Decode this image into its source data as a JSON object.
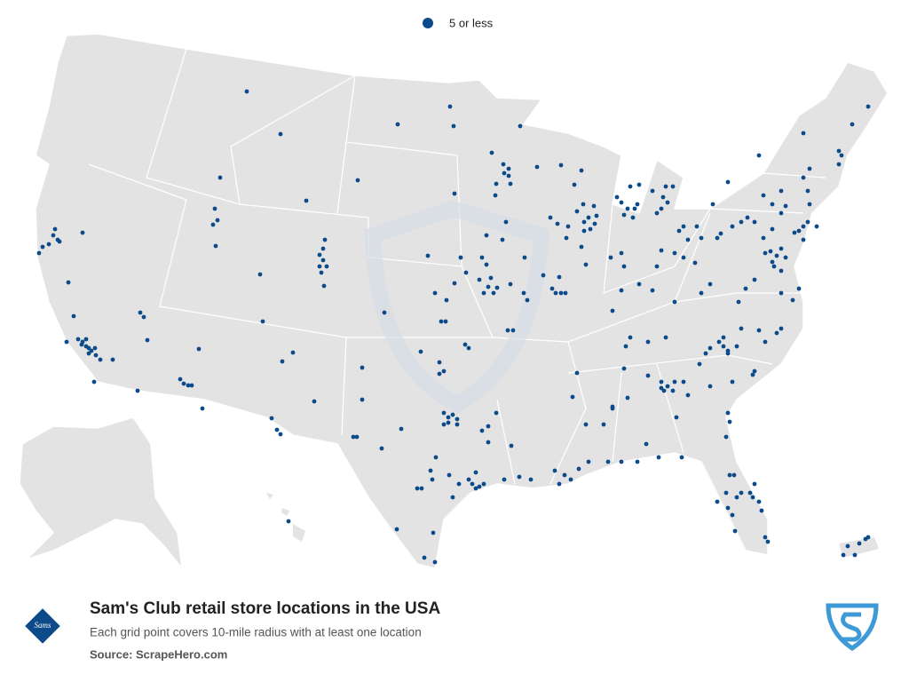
{
  "legend": {
    "label": "5 or less"
  },
  "logo_text": "Sams",
  "title": "Sam's Club retail store locations in the USA",
  "subtitle": "Each grid point covers 10-mile radius with at least one location",
  "source": "Source: ScrapeHero.com"
}
